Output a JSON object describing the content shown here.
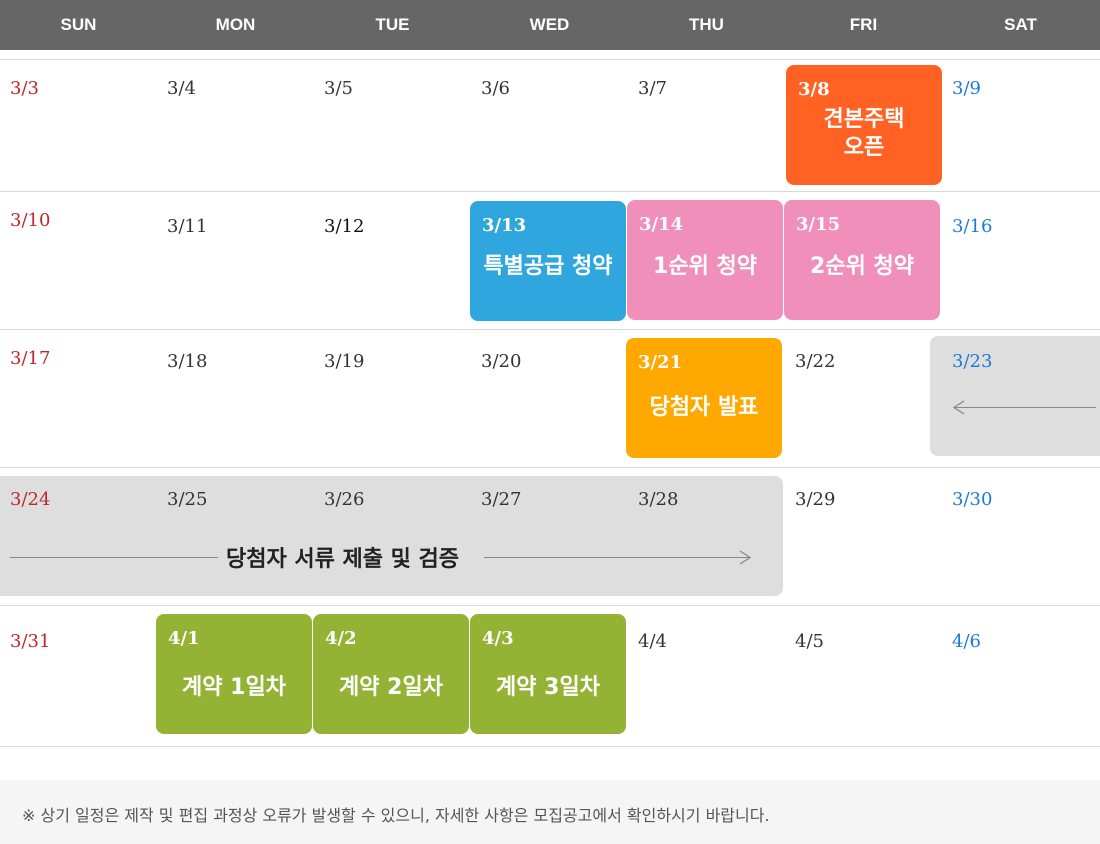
{
  "days_of_week": [
    "SUN",
    "MON",
    "TUE",
    "WED",
    "THU",
    "FRI",
    "SAT"
  ],
  "weeks": [
    {
      "dates": [
        "3/3",
        "3/4",
        "3/5",
        "3/6",
        "3/7",
        "3/8",
        "3/9"
      ]
    },
    {
      "dates": [
        "3/10",
        "3/11",
        "3/12",
        "3/13",
        "3/14",
        "3/15",
        "3/16"
      ]
    },
    {
      "dates": [
        "3/17",
        "3/18",
        "3/19",
        "3/20",
        "3/21",
        "3/22",
        "3/23"
      ]
    },
    {
      "dates": [
        "3/24",
        "3/25",
        "3/26",
        "3/27",
        "3/28",
        "3/29",
        "3/30"
      ]
    },
    {
      "dates": [
        "3/31",
        "4/1",
        "4/2",
        "4/3",
        "4/4",
        "4/5",
        "4/6"
      ]
    }
  ],
  "events": {
    "model_house": {
      "date": "3/8",
      "title_line1": "견본주택",
      "title_line2": "오픈",
      "color": "#ff6222"
    },
    "special_supply": {
      "date": "3/13",
      "title": "특별공급 청약",
      "color": "#2fa6dd"
    },
    "rank1": {
      "date": "3/14",
      "title": "1순위 청약",
      "color": "#ef8fba"
    },
    "rank2": {
      "date": "3/15",
      "title": "2순위 청약",
      "color": "#ef8fba"
    },
    "winner_announce": {
      "date": "3/21",
      "title": "당첨자 발표",
      "color": "#ffa800"
    },
    "document_submission": {
      "title": "당첨자 서류 제출 및 검증",
      "color": "#dedede"
    },
    "contract_day1": {
      "date": "4/1",
      "title": "계약 1일차",
      "color": "#94b335"
    },
    "contract_day2": {
      "date": "4/2",
      "title": "계약 2일차",
      "color": "#94b335"
    },
    "contract_day3": {
      "date": "4/3",
      "title": "계약 3일차",
      "color": "#94b335"
    }
  },
  "footer": {
    "notice": "※  상기 일정은 제작 및 편집 과정상 오류가 발생할 수 있으니, 자세한 사항은 모집공고에서 확인하시기 바랍니다."
  },
  "colors": {
    "header_bg": "#666666",
    "sunday": "#c0262b",
    "saturday": "#1a7bd6"
  }
}
